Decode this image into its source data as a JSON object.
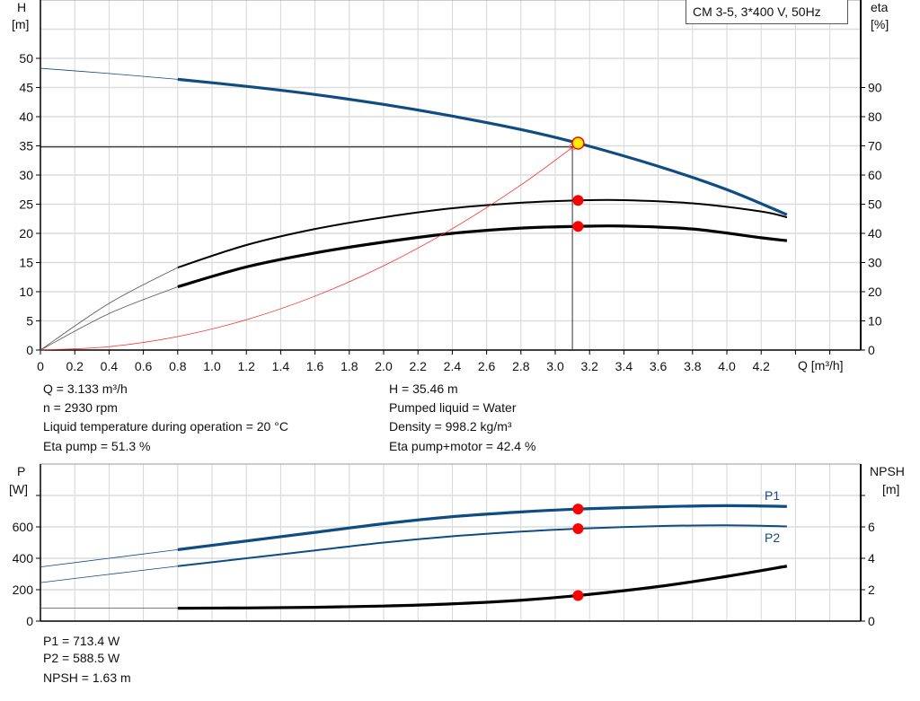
{
  "chart_data": [
    {
      "type": "line",
      "title": "CM 3-5, 3*400 V, 50Hz",
      "xlabel": "Q [m³/h]",
      "ylabel": "H",
      "ylabel_unit": "[m]",
      "y2label": "eta",
      "y2label_unit": "[%]",
      "xlim": [
        0,
        4.78
      ],
      "ylim": [
        0,
        60
      ],
      "y2lim": [
        0,
        120
      ],
      "grid": true,
      "xticks": [
        "0",
        "0.2",
        "0.4",
        "0.6",
        "0.8",
        "1.0",
        "1.2",
        "1.4",
        "1.6",
        "1.8",
        "2.0",
        "2.2",
        "2.4",
        "2.6",
        "2.8",
        "3.0",
        "3.2",
        "3.4",
        "3.6",
        "3.8",
        "4.0",
        "4.2"
      ],
      "yticks": [
        "0",
        "5",
        "10",
        "15",
        "20",
        "25",
        "30",
        "35",
        "40",
        "45",
        "50"
      ],
      "y2ticks": [
        "0",
        "10",
        "20",
        "30",
        "40",
        "50",
        "60",
        "70",
        "80",
        "90"
      ],
      "series": [
        {
          "id": "H",
          "axis": "y",
          "color": "#0f4c81",
          "x": [
            0,
            0.4,
            0.8,
            1.2,
            1.6,
            2.0,
            2.4,
            2.8,
            3.133,
            3.6,
            4.0,
            4.35
          ],
          "y": [
            48.3,
            47.4,
            46.4,
            45.2,
            43.8,
            42.1,
            40.1,
            37.8,
            35.46,
            31.5,
            27.5,
            23.2
          ]
        },
        {
          "id": "eta-pump",
          "axis": "y2",
          "color": "#000000",
          "x": [
            0,
            0.4,
            0.8,
            1.2,
            1.6,
            2.0,
            2.4,
            2.8,
            3.133,
            3.4,
            3.8,
            4.2,
            4.35
          ],
          "y": [
            0,
            16,
            28.3,
            36,
            41.5,
            45.5,
            48.6,
            50.5,
            51.3,
            51.4,
            50.3,
            47.5,
            45.5
          ]
        },
        {
          "id": "eta-pump-motor",
          "axis": "y2",
          "color": "#000000",
          "x": [
            0,
            0.4,
            0.8,
            1.2,
            1.6,
            2.0,
            2.4,
            2.8,
            3.133,
            3.4,
            3.8,
            4.2,
            4.35
          ],
          "y": [
            0,
            12.5,
            21.7,
            28.5,
            33.3,
            37,
            40,
            41.8,
            42.4,
            42.5,
            41.5,
            38.5,
            37.5
          ]
        },
        {
          "id": "system-curve",
          "axis": "y",
          "color": "#ff2a2a",
          "x": [
            0,
            0.4,
            0.8,
            1.2,
            1.6,
            2.0,
            2.4,
            2.8,
            3.133
          ],
          "y": [
            0,
            0.58,
            2.31,
            5.2,
            9.24,
            14.44,
            20.8,
            28.3,
            35.46
          ]
        }
      ],
      "duty_point": {
        "Q": 3.133,
        "H": 35.46,
        "eta_pump": 51.3,
        "eta_pump_motor": 42.4
      },
      "requested_point": {
        "Q": 3.1,
        "H": 34.8
      }
    },
    {
      "type": "line",
      "ylabel": "P",
      "ylabel_unit": "[W]",
      "y2label": "NPSH",
      "y2label_unit": "[m]",
      "xlim": [
        0,
        4.78
      ],
      "ylim": [
        0,
        1000
      ],
      "y2lim": [
        0,
        10
      ],
      "grid": true,
      "yticks": [
        "0",
        "200",
        "400",
        "600"
      ],
      "y2ticks": [
        "0",
        "2",
        "4",
        "6"
      ],
      "series": [
        {
          "id": "P1",
          "name": "P1",
          "axis": "y",
          "color": "#0f4c81",
          "x": [
            0,
            0.4,
            0.8,
            1.2,
            1.6,
            2.0,
            2.4,
            2.8,
            3.133,
            3.6,
            4.0,
            4.35
          ],
          "y": [
            345,
            400,
            455,
            510,
            565,
            620,
            665,
            695,
            713.4,
            728,
            735,
            730
          ]
        },
        {
          "id": "P2",
          "name": "P2",
          "axis": "y",
          "color": "#0f4c81",
          "x": [
            0,
            0.4,
            0.8,
            1.2,
            1.6,
            2.0,
            2.4,
            2.8,
            3.133,
            3.6,
            4.0,
            4.35
          ],
          "y": [
            245,
            298,
            350,
            400,
            450,
            500,
            540,
            570,
            588.5,
            605,
            610,
            603
          ]
        },
        {
          "id": "NPSH",
          "axis": "y2",
          "color": "#000000",
          "x": [
            0,
            0.4,
            0.8,
            1.2,
            1.6,
            2.0,
            2.4,
            2.8,
            3.133,
            3.6,
            4.0,
            4.35
          ],
          "y": [
            0.82,
            0.82,
            0.82,
            0.84,
            0.88,
            0.96,
            1.1,
            1.33,
            1.63,
            2.2,
            2.85,
            3.5
          ]
        }
      ],
      "duty_point": {
        "Q": 3.133,
        "P1": 713.4,
        "P2": 588.5,
        "NPSH": 1.63
      }
    }
  ],
  "info": {
    "q": "Q = 3.133 m³/h",
    "n": "n = 2930 rpm",
    "temp": "Liquid temperature during operation = 20 °C",
    "eta_pump": "Eta pump = 51.3 %",
    "h": "H = 35.46 m",
    "liquid": "Pumped liquid = Water",
    "density": "Density = 998.2 kg/m³",
    "eta_pm": "Eta pump+motor = 42.4 %",
    "p1": "P1 = 713.4 W",
    "p2": "P2 = 588.5 W",
    "npsh": "NPSH = 1.63 m"
  }
}
